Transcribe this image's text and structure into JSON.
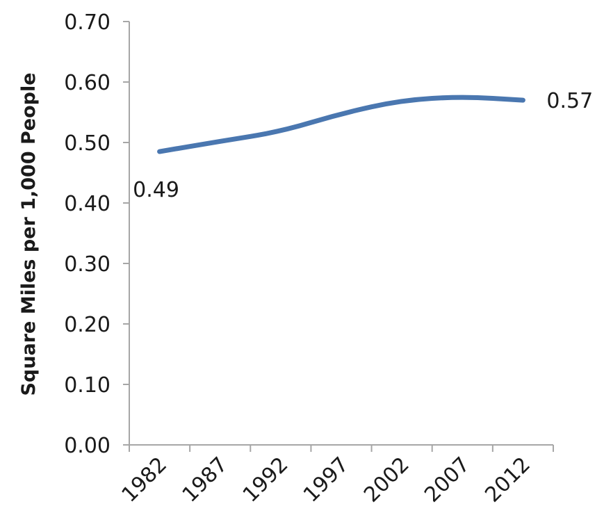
{
  "chart_data": {
    "type": "line",
    "ylabel": "Square Miles per 1,000 People",
    "xlabel": "",
    "ylim": [
      0,
      0.7
    ],
    "yticks": [
      "0.00",
      "0.10",
      "0.20",
      "0.30",
      "0.40",
      "0.50",
      "0.60",
      "0.70"
    ],
    "categories": [
      "1982",
      "1987",
      "1992",
      "1997",
      "2002",
      "2007",
      "2012"
    ],
    "series": [
      {
        "values": [
          0.485,
          0.502,
          0.518,
          0.548,
          0.57,
          0.576,
          0.57
        ],
        "color": "#4a77b0"
      }
    ],
    "data_labels": [
      {
        "index": 0,
        "text": "0.49",
        "position": "below"
      },
      {
        "index": 6,
        "text": "0.57",
        "position": "right"
      }
    ],
    "grid": false,
    "legend": "none"
  }
}
